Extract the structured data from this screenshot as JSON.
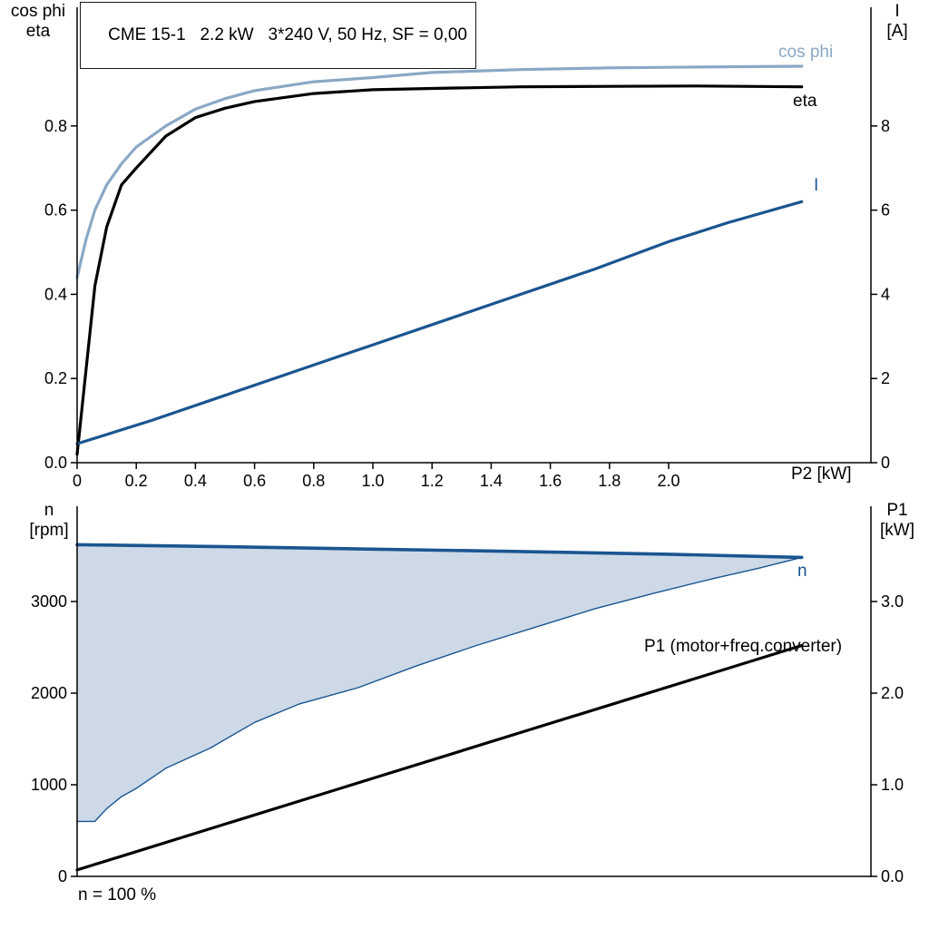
{
  "title": "CME 15-1   2.2 kW   3*240 V, 50 Hz, SF = 0,00",
  "axis_labels": {
    "top_left_1": "cos phi",
    "top_left_2": "eta",
    "top_right_1": "I",
    "top_right_2": "[A]",
    "top_x": "P2 [kW]",
    "bottom_left_1": "n",
    "bottom_left_2": "[rpm]",
    "bottom_right_1": "P1",
    "bottom_right_2": "[kW]",
    "bottom_note": "n = 100 %"
  },
  "curve_labels": {
    "cos_phi": "cos phi",
    "eta": "eta",
    "current": "I",
    "speed": "n",
    "p1": "P1 (motor+freq.converter)"
  },
  "colors": {
    "light_blue": "#8aa8c6",
    "dark_blue": "#1a5590",
    "black": "#000000",
    "area_fill": "#cdd9e7"
  },
  "chart_data": [
    {
      "type": "line",
      "title": "CME 15-1   2.2 kW   3*240 V, 50 Hz, SF = 0,00",
      "xlabel": "P2 [kW]",
      "ylabel_left": "cos phi / eta",
      "ylabel_right": "I [A]",
      "xlim": [
        0,
        2.684
      ],
      "ylim_left": [
        0,
        1.082
      ],
      "ylim_right": [
        0,
        10.82
      ],
      "xticks": {
        "values": [
          0,
          0.2,
          0.4,
          0.6,
          0.8,
          1.0,
          1.2,
          1.4,
          1.6,
          1.8,
          2.0
        ],
        "labels": [
          "0",
          "0.2",
          "0.4",
          "0.6",
          "0.8",
          "1.0",
          "1.2",
          "1.4",
          "1.6",
          "1.8",
          "2.0"
        ]
      },
      "yticks_left": {
        "values": [
          0,
          0.2,
          0.4,
          0.6,
          0.8
        ],
        "labels": [
          "0.0",
          "0.2",
          "0.4",
          "0.6",
          "0.8"
        ]
      },
      "yticks_right": {
        "values": [
          0,
          2,
          4,
          6,
          8
        ],
        "labels": [
          "0",
          "2",
          "4",
          "6",
          "8"
        ]
      },
      "series": [
        {
          "name": "cos phi",
          "axis": "left",
          "color": "#8aa8c6",
          "width": 3.2,
          "x": [
            0,
            0.03,
            0.06,
            0.1,
            0.15,
            0.2,
            0.3,
            0.4,
            0.5,
            0.6,
            0.8,
            1.0,
            1.2,
            1.5,
            1.8,
            2.1,
            2.45
          ],
          "y": [
            0.44,
            0.53,
            0.6,
            0.66,
            0.71,
            0.75,
            0.8,
            0.84,
            0.865,
            0.884,
            0.905,
            0.915,
            0.927,
            0.934,
            0.938,
            0.94,
            0.942
          ]
        },
        {
          "name": "eta",
          "axis": "left",
          "color": "#000000",
          "width": 3.2,
          "x": [
            0,
            0.03,
            0.06,
            0.1,
            0.15,
            0.2,
            0.3,
            0.4,
            0.5,
            0.6,
            0.8,
            1.0,
            1.2,
            1.5,
            1.8,
            2.1,
            2.45
          ],
          "y": [
            0.02,
            0.22,
            0.42,
            0.56,
            0.66,
            0.7,
            0.776,
            0.82,
            0.842,
            0.858,
            0.877,
            0.886,
            0.889,
            0.893,
            0.894,
            0.895,
            0.893
          ]
        },
        {
          "name": "I",
          "axis": "right",
          "color": "#1a5590",
          "width": 3.2,
          "x": [
            0,
            0.25,
            0.5,
            0.75,
            1.0,
            1.25,
            1.5,
            1.75,
            2.0,
            2.2,
            2.45
          ],
          "y": [
            0.45,
            1.0,
            1.6,
            2.2,
            2.8,
            3.4,
            4.0,
            4.6,
            5.25,
            5.7,
            6.2
          ]
        }
      ],
      "fill_between": []
    },
    {
      "type": "line",
      "title": "",
      "xlabel": "",
      "ylabel_left": "n [rpm]",
      "ylabel_right": "P1 [kW]",
      "note": "n = 100 %",
      "xlim": [
        0,
        2.684
      ],
      "ylim_left": [
        0,
        4040
      ],
      "ylim_right": [
        0,
        4.04
      ],
      "xticks": {
        "values": [],
        "labels": []
      },
      "yticks_left": {
        "values": [
          0,
          1000,
          2000,
          3000
        ],
        "labels": [
          "0",
          "1000",
          "2000",
          "3000"
        ]
      },
      "yticks_right": {
        "values": [
          0,
          1,
          2,
          3
        ],
        "labels": [
          "0.0",
          "1.0",
          "2.0",
          "3.0"
        ]
      },
      "series": [
        {
          "name": "n min",
          "axis": "left",
          "color": "#1a5590",
          "width": 1.4,
          "x": [
            0,
            0.06,
            0.1,
            0.15,
            0.2,
            0.3,
            0.45,
            0.6,
            0.75,
            0.95,
            1.15,
            1.35,
            1.55,
            1.75,
            1.95,
            2.15,
            2.3,
            2.45
          ],
          "y": [
            600,
            600,
            740,
            870,
            960,
            1180,
            1400,
            1680,
            1880,
            2060,
            2300,
            2520,
            2720,
            2920,
            3090,
            3250,
            3360,
            3482
          ]
        },
        {
          "name": "n",
          "axis": "left",
          "color": "#1a5590",
          "width": 3.6,
          "x": [
            0,
            0.5,
            1.0,
            1.5,
            2.0,
            2.45
          ],
          "y": [
            3620,
            3598,
            3572,
            3546,
            3516,
            3482
          ]
        },
        {
          "name": "P1 (motor+freq.converter)",
          "axis": "right",
          "color": "#000000",
          "width": 3.2,
          "x": [
            0,
            0.5,
            1.0,
            1.5,
            2.0,
            2.45
          ],
          "y": [
            0.07,
            0.57,
            1.07,
            1.57,
            2.07,
            2.52
          ]
        }
      ],
      "fill_between": [
        {
          "name": "speed-range",
          "upper": "n",
          "lower": "n min",
          "color": "#cdd9e7"
        }
      ]
    }
  ]
}
